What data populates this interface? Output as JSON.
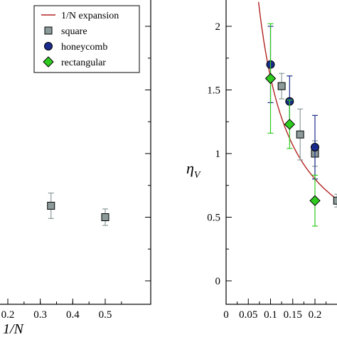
{
  "chart_data": [
    {
      "type": "scatter",
      "panel": "left",
      "xlabel": "1/N",
      "ylabel": "",
      "title": "",
      "x_ticks": [
        "0.2",
        "0.3",
        "0.4",
        "0.5"
      ],
      "legend": [
        {
          "label": "1/N expansion",
          "marker": "line",
          "color": "#b22222"
        },
        {
          "label": "square",
          "marker": "square",
          "color": "#8c9a9a"
        },
        {
          "label": "honeycomb",
          "marker": "circle",
          "color": "#1a2a8c"
        },
        {
          "label": "rectangular",
          "marker": "diamond",
          "color": "#2ecc1f"
        }
      ],
      "legend_position": "top-left",
      "series": [
        {
          "name": "square",
          "color": "#8c9a9a",
          "points": [
            {
              "x": 0.333,
              "y": 0.59,
              "err": 0.1
            },
            {
              "x": 0.5,
              "y": 0.5,
              "err": 0.065
            }
          ]
        }
      ],
      "xlim": [
        0.2,
        0.6
      ],
      "ylim": [
        -0.2,
        2.2
      ]
    },
    {
      "type": "scatter",
      "panel": "right",
      "xlabel": "",
      "ylabel": "η_V",
      "ylabel_main": "η",
      "ylabel_sub": "V",
      "title": "",
      "x_ticks": [
        "0",
        "0.05",
        "0.1",
        "0.15",
        "0.2"
      ],
      "y_ticks": [
        "0",
        "0.5",
        "1",
        "1.5",
        "2"
      ],
      "xlim": [
        0,
        0.25
      ],
      "ylim": [
        -0.2,
        2.2
      ],
      "series": [
        {
          "name": "1/N expansion",
          "type": "line",
          "color": "#b22222",
          "function": "0.16/x",
          "x_range": [
            0.063,
            0.26
          ]
        },
        {
          "name": "square",
          "color": "#8c9a9a",
          "points": [
            {
              "x": 0.125,
              "y": 1.53,
              "err": 0.1
            },
            {
              "x": 0.1667,
              "y": 1.15,
              "err": 0.2
            },
            {
              "x": 0.2,
              "y": 1.0,
              "err": 0.1
            },
            {
              "x": 0.25,
              "y": 0.63,
              "err": 0.05
            }
          ]
        },
        {
          "name": "honeycomb",
          "color": "#1a2a8c",
          "points": [
            {
              "x": 0.1,
              "y": 1.7,
              "err": 0.3
            },
            {
              "x": 0.1429,
              "y": 1.41,
              "err": 0.2
            },
            {
              "x": 0.2,
              "y": 1.05,
              "err": 0.25
            }
          ]
        },
        {
          "name": "rectangular",
          "color": "#2ecc1f",
          "points": [
            {
              "x": 0.1,
              "y": 1.59,
              "err": 0.43
            },
            {
              "x": 0.1429,
              "y": 1.23,
              "err": 0.19
            },
            {
              "x": 0.2,
              "y": 0.63,
              "err": 0.2
            }
          ]
        }
      ]
    }
  ]
}
